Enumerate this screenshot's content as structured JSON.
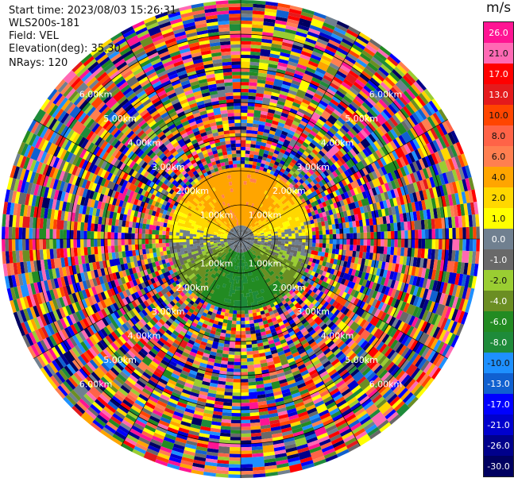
{
  "header": {
    "start_time": "Start time: 2023/08/03 15:26:31",
    "instrument": "WLS200s-181",
    "field": "Field: VEL",
    "elevation": "Elevation(deg): 35.30",
    "nrays": "NRays: 120"
  },
  "colorbar": {
    "unit": "m/s",
    "ticks": [
      "26.0",
      "21.0",
      "17.0",
      "13.0",
      "10.0",
      "8.0",
      "6.0",
      "4.0",
      "2.0",
      "1.0",
      "0.0",
      "-1.0",
      "-2.0",
      "-4.0",
      "-6.0",
      "-8.0",
      "-10.0",
      "-13.0",
      "-17.0",
      "-21.0",
      "-26.0",
      "-30.0"
    ],
    "colors": [
      "#ff1493",
      "#ff69b4",
      "#ff0000",
      "#e41a1c",
      "#ff4500",
      "#ff6347",
      "#ff7f50",
      "#ffa500",
      "#ffd700",
      "#ffff00",
      "#708090",
      "#696969",
      "#9acd32",
      "#6b8e23",
      "#228b22",
      "#1e8b3a",
      "#1e90ff",
      "#1060d0",
      "#0000ff",
      "#0000cd",
      "#00008b",
      "#000060"
    ]
  },
  "chart_data": {
    "type": "ppi",
    "field": "VEL",
    "units": "m/s",
    "nrays": 120,
    "elevation_deg": 35.3,
    "range_km_max": 7.0,
    "range_ring_labels": [
      "1.00km",
      "2.00km",
      "3.00km",
      "4.00km",
      "5.00km",
      "6.00km"
    ],
    "valid_data_radius_km": 2.1,
    "velocity_pattern": {
      "north_sector": "positive (2 to 8 m/s, outbound)",
      "east_west": "yellow/grey band near 0 to 2 m/s",
      "south_sector": "negative (-2 to -10 m/s, inbound)"
    },
    "beyond_valid_range": "noise (all colors)"
  }
}
